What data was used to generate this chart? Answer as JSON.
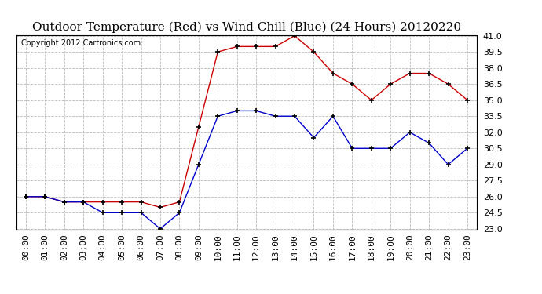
{
  "title": "Outdoor Temperature (Red) vs Wind Chill (Blue) (24 Hours) 20120220",
  "copyright": "Copyright 2012 Cartronics.com",
  "x_labels": [
    "00:00",
    "01:00",
    "02:00",
    "03:00",
    "04:00",
    "05:00",
    "06:00",
    "07:00",
    "08:00",
    "09:00",
    "10:00",
    "11:00",
    "12:00",
    "13:00",
    "14:00",
    "15:00",
    "16:00",
    "17:00",
    "18:00",
    "19:00",
    "20:00",
    "21:00",
    "22:00",
    "23:00"
  ],
  "temp_red": [
    26.0,
    26.0,
    25.5,
    25.5,
    25.5,
    25.5,
    25.5,
    25.0,
    25.5,
    32.5,
    39.5,
    40.0,
    40.0,
    40.0,
    41.0,
    39.5,
    37.5,
    36.5,
    35.0,
    36.5,
    37.5,
    37.5,
    36.5,
    35.0
  ],
  "wind_blue": [
    26.0,
    26.0,
    25.5,
    25.5,
    24.5,
    24.5,
    24.5,
    23.0,
    24.5,
    29.0,
    33.5,
    34.0,
    34.0,
    33.5,
    33.5,
    31.5,
    33.5,
    30.5,
    30.5,
    30.5,
    32.0,
    31.0,
    29.0,
    30.5
  ],
  "ylim_min": 23.0,
  "ylim_max": 41.0,
  "ytick_step": 1.5,
  "line_color_red": "#cc0000",
  "line_color_blue": "#0000cc",
  "background_color": "#ffffff",
  "grid_color": "#bbbbbb",
  "title_fontsize": 11,
  "copyright_fontsize": 7,
  "axis_label_fontsize": 8
}
